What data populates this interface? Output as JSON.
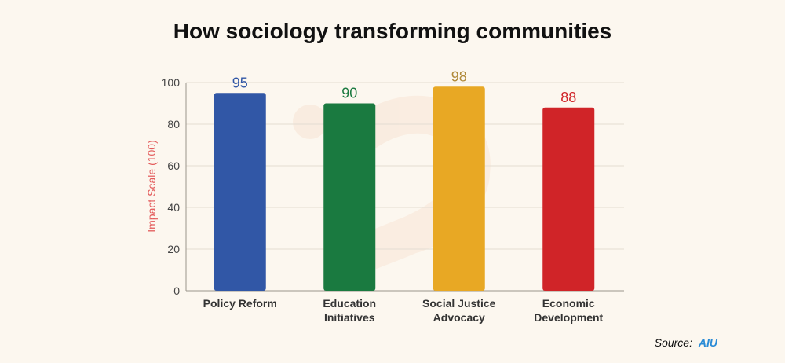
{
  "title": "How sociology transforming communities",
  "source": {
    "label": "Source:",
    "name": "AIU"
  },
  "chart_data": {
    "type": "bar",
    "title": "How sociology transforming communities",
    "xlabel": "",
    "ylabel": "Impact Scale (100)",
    "ylim": [
      0,
      100
    ],
    "yticks": [
      0,
      20,
      40,
      60,
      80,
      100
    ],
    "grid": true,
    "categories": [
      "Policy Reform",
      "Education Initiatives",
      "Social Justice Advocacy",
      "Economic Development"
    ],
    "category_lines": [
      [
        "Policy Reform"
      ],
      [
        "Education",
        "Initiatives"
      ],
      [
        "Social Justice",
        "Advocacy"
      ],
      [
        "Economic",
        "Development"
      ]
    ],
    "values": [
      95,
      90,
      98,
      88
    ],
    "colors": [
      "#3157a6",
      "#1a7a40",
      "#e8a824",
      "#d02428"
    ],
    "label_colors": [
      "#3157a6",
      "#1a7a40",
      "#b08a3a",
      "#d02428"
    ],
    "ylabel_color": "#e35b5b"
  }
}
